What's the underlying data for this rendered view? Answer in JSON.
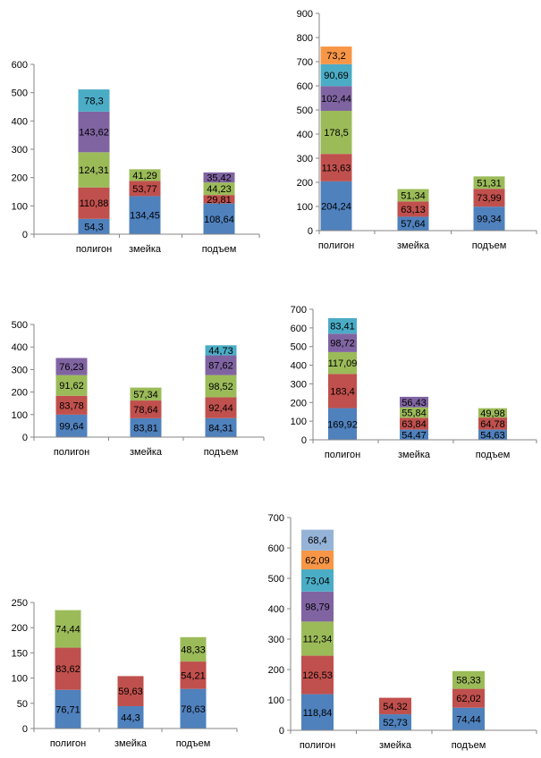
{
  "colors": [
    "#4f81bd",
    "#c0504d",
    "#9bbb59",
    "#8064a2",
    "#4bacc6",
    "#f79646",
    "#95b3d7"
  ],
  "chart_data": [
    {
      "type": "bar",
      "stacked": true,
      "categories": [
        "полигон",
        "змейка",
        "подъем"
      ],
      "ylim": [
        0,
        600
      ],
      "yticks": [
        0,
        100,
        200,
        300,
        400,
        500,
        600
      ],
      "stacks": [
        [
          {
            "v": 54.3,
            "label": "54,3"
          },
          {
            "v": 110.88,
            "label": "110,88"
          },
          {
            "v": 124.31,
            "label": "124,31"
          },
          {
            "v": 143.62,
            "label": "143,62"
          },
          {
            "v": 78.3,
            "label": "78,3"
          }
        ],
        [
          {
            "v": 134.45,
            "label": "134,45"
          },
          {
            "v": 53.77,
            "label": "53,77"
          },
          {
            "v": 41.29,
            "label": "41,29"
          }
        ],
        [
          {
            "v": 108.64,
            "label": "108,64"
          },
          {
            "v": 29.81,
            "label": "29,81"
          },
          {
            "v": 44.23,
            "label": "44,23"
          },
          {
            "v": 35.42,
            "label": "35,42"
          }
        ]
      ]
    },
    {
      "type": "bar",
      "stacked": true,
      "categories": [
        "полигон",
        "змейка",
        "подъем"
      ],
      "ylim": [
        0,
        900
      ],
      "yticks": [
        0,
        100,
        200,
        300,
        400,
        500,
        600,
        700,
        800,
        900
      ],
      "stacks": [
        [
          {
            "v": 204.24,
            "label": "204,24"
          },
          {
            "v": 113.63,
            "label": "113,63"
          },
          {
            "v": 178.5,
            "label": "178,5"
          },
          {
            "v": 102.44,
            "label": "102,44"
          },
          {
            "v": 90.69,
            "label": "90,69"
          },
          {
            "v": 73.2,
            "label": "73,2"
          }
        ],
        [
          {
            "v": 57.64,
            "label": "57,64"
          },
          {
            "v": 63.13,
            "label": "63,13"
          },
          {
            "v": 51.34,
            "label": "51,34"
          }
        ],
        [
          {
            "v": 99.34,
            "label": "99,34"
          },
          {
            "v": 73.99,
            "label": "73,99"
          },
          {
            "v": 51.31,
            "label": "51,31"
          }
        ]
      ]
    },
    {
      "type": "bar",
      "stacked": true,
      "categories": [
        "полигон",
        "змейка",
        "подъем"
      ],
      "ylim": [
        0,
        500
      ],
      "yticks": [
        0,
        100,
        200,
        300,
        400,
        500
      ],
      "stacks": [
        [
          {
            "v": 99.64,
            "label": "99,64"
          },
          {
            "v": 83.78,
            "label": "83,78"
          },
          {
            "v": 91.62,
            "label": "91,62"
          },
          {
            "v": 76.23,
            "label": "76,23"
          }
        ],
        [
          {
            "v": 83.81,
            "label": "83,81"
          },
          {
            "v": 78.64,
            "label": "78,64"
          },
          {
            "v": 57.34,
            "label": "57,34"
          }
        ],
        [
          {
            "v": 84.31,
            "label": "84,31"
          },
          {
            "v": 92.44,
            "label": "92,44"
          },
          {
            "v": 98.52,
            "label": "98,52"
          },
          {
            "v": 87.62,
            "label": "87,62"
          },
          {
            "v": 44.73,
            "label": "44,73"
          }
        ]
      ]
    },
    {
      "type": "bar",
      "stacked": true,
      "categories": [
        "полигон",
        "змейка",
        "подъем"
      ],
      "ylim": [
        0,
        700
      ],
      "yticks": [
        0,
        100,
        200,
        300,
        400,
        500,
        600,
        700
      ],
      "stacks": [
        [
          {
            "v": 169.92,
            "label": "169,92"
          },
          {
            "v": 183.4,
            "label": "183,4"
          },
          {
            "v": 117.09,
            "label": "117,09"
          },
          {
            "v": 98.72,
            "label": "98,72"
          },
          {
            "v": 83.41,
            "label": "83,41"
          }
        ],
        [
          {
            "v": 54.47,
            "label": "54,47"
          },
          {
            "v": 63.84,
            "label": "63,84"
          },
          {
            "v": 55.84,
            "label": "55,84"
          },
          {
            "v": 56.43,
            "label": "56,43"
          }
        ],
        [
          {
            "v": 54.63,
            "label": "54,63"
          },
          {
            "v": 64.78,
            "label": "64,78"
          },
          {
            "v": 49.98,
            "label": "49,98"
          }
        ]
      ]
    },
    {
      "type": "bar",
      "stacked": true,
      "categories": [
        "полигон",
        "змейка",
        "подъем"
      ],
      "ylim": [
        0,
        250
      ],
      "yticks": [
        0,
        50,
        100,
        150,
        200,
        250
      ],
      "stacks": [
        [
          {
            "v": 76.71,
            "label": "76,71"
          },
          {
            "v": 83.62,
            "label": "83,62"
          },
          {
            "v": 74.44,
            "label": "74,44"
          }
        ],
        [
          {
            "v": 44.3,
            "label": "44,3"
          },
          {
            "v": 59.63,
            "label": "59,63"
          }
        ],
        [
          {
            "v": 78.63,
            "label": "78,63"
          },
          {
            "v": 54.21,
            "label": "54,21"
          },
          {
            "v": 48.33,
            "label": "48,33"
          }
        ]
      ]
    },
    {
      "type": "bar",
      "stacked": true,
      "categories": [
        "полигон",
        "змейка",
        "подъем"
      ],
      "ylim": [
        0,
        700
      ],
      "yticks": [
        0,
        100,
        200,
        300,
        400,
        500,
        600,
        700
      ],
      "stacks": [
        [
          {
            "v": 118.84,
            "label": "118,84"
          },
          {
            "v": 126.53,
            "label": "126,53"
          },
          {
            "v": 112.34,
            "label": "112,34"
          },
          {
            "v": 98.79,
            "label": "98,79"
          },
          {
            "v": 73.04,
            "label": "73,04"
          },
          {
            "v": 62.09,
            "label": "62,09"
          },
          {
            "v": 68.4,
            "label": "68,4"
          }
        ],
        [
          {
            "v": 52.73,
            "label": "52,73"
          },
          {
            "v": 54.32,
            "label": "54,32"
          }
        ],
        [
          {
            "v": 74.44,
            "label": "74,44"
          },
          {
            "v": 62.02,
            "label": "62,02"
          },
          {
            "v": 58.33,
            "label": "58,33"
          }
        ]
      ]
    }
  ]
}
